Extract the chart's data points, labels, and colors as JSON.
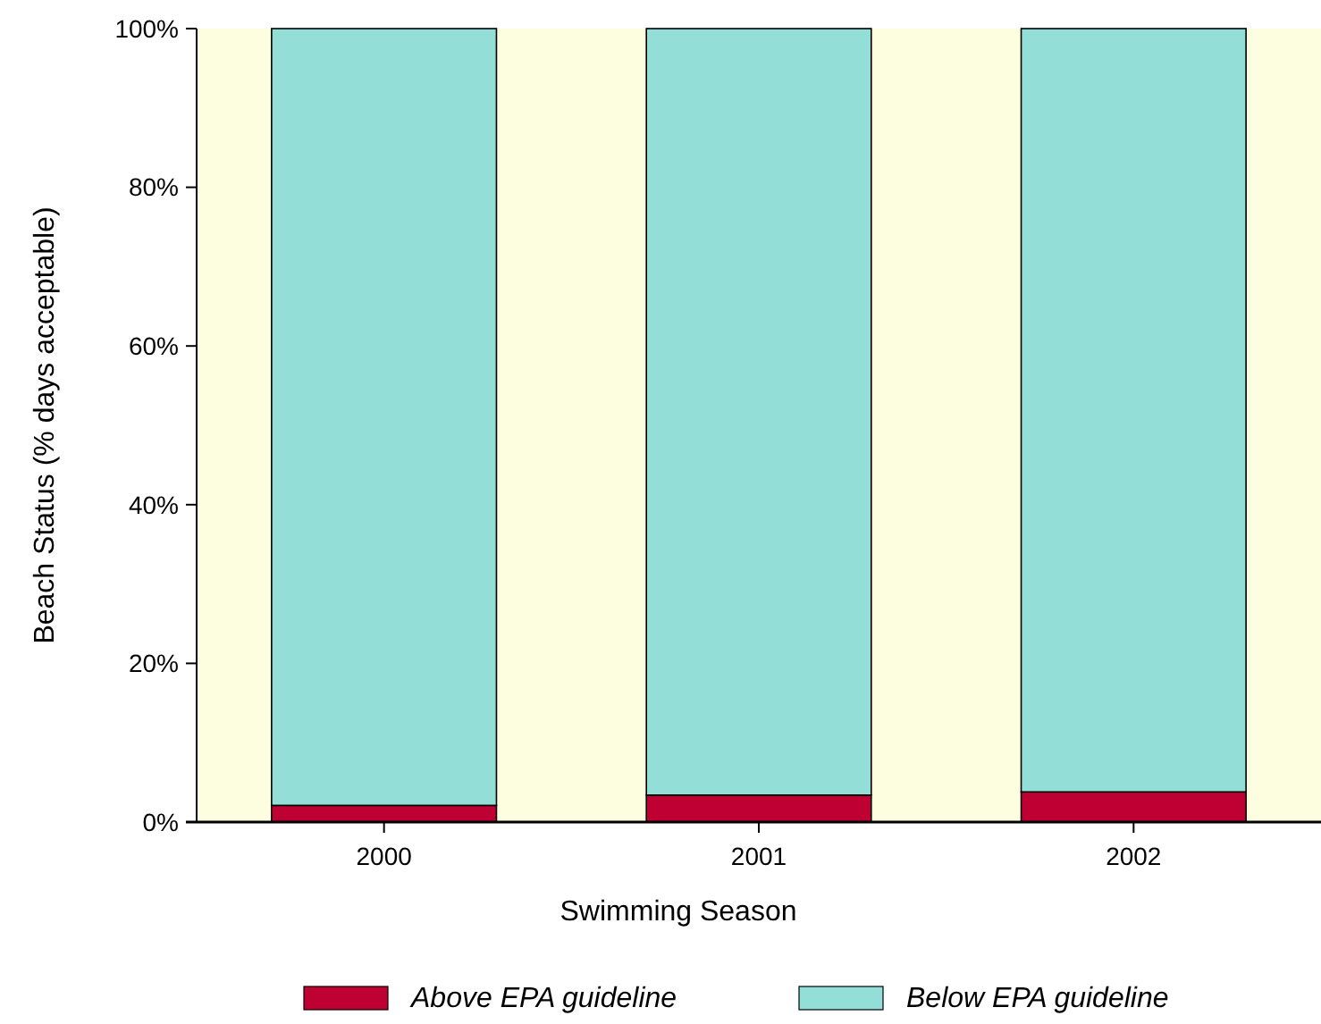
{
  "chart_data": {
    "type": "bar",
    "stacked": true,
    "xlabel": "Swimming Season",
    "ylabel": "Beach Status (% days acceptable)",
    "categories": [
      "2000",
      "2001",
      "2002"
    ],
    "series": [
      {
        "name": "Above EPA guideline",
        "color": "#bf0033",
        "values": [
          2.1,
          3.4,
          3.8
        ]
      },
      {
        "name": "Below EPA guideline",
        "color": "#93dfd7",
        "values": [
          97.9,
          96.6,
          96.2
        ]
      }
    ],
    "ylim": [
      0,
      100
    ],
    "yticks": [
      {
        "value": 0,
        "label": "0%"
      },
      {
        "value": 20,
        "label": "20%"
      },
      {
        "value": 40,
        "label": "40%"
      },
      {
        "value": 60,
        "label": "60%"
      },
      {
        "value": 80,
        "label": "80%"
      },
      {
        "value": 100,
        "label": "100%"
      }
    ],
    "grid": false,
    "legend": "bottom"
  }
}
